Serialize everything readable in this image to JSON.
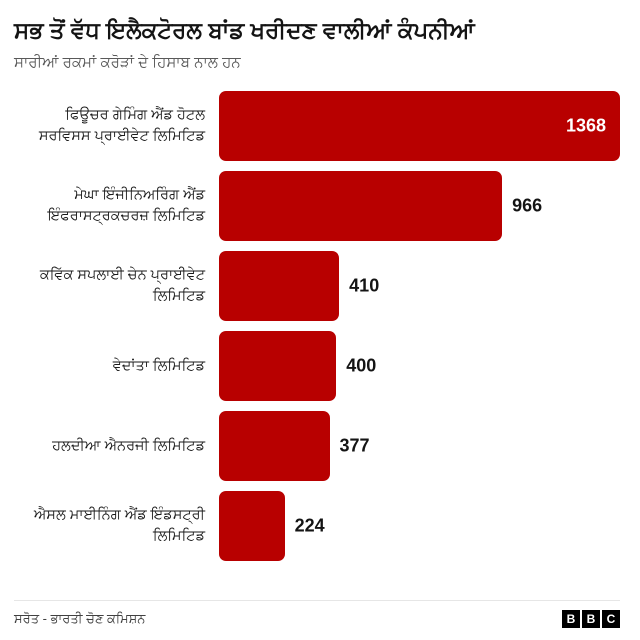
{
  "header": {
    "title": "ਸਭ ਤੋਂ ਵੱਧ ਇਲੈਕਟੋਰਲ ਬਾਂਡ ਖਰੀਦਣ ਵਾਲੀਆਂ ਕੰਪਨੀਆਂ",
    "subtitle": "ਸਾਰੀਆਂ ਰਕਮਾਂ ਕਰੋੜਾਂ ਦੇ ਹਿਸਾਬ ਨਾਲ ਹਨ"
  },
  "chart_data": {
    "type": "bar",
    "orientation": "horizontal",
    "title": "ਸਭ ਤੋਂ ਵੱਧ ਇਲੈਕਟੋਰਲ ਬਾਂਡ ਖਰੀਦਣ ਵਾਲੀਆਂ ਕੰਪਨੀਆਂ",
    "subtitle": "ਸਾਰੀਆਂ ਰਕਮਾਂ ਕਰੋੜਾਂ ਦੇ ਹਿਸਾਬ ਨਾਲ ਹਨ",
    "categories": [
      "ਫਿਊਚਰ ਗੇਮਿੰਗ ਐਂਡ ਹੋਟਲ ਸਰਵਿਸਸ ਪ੍ਰਾਈਵੇਟ ਲਿਮਿਟਿਡ",
      "ਮੇਘਾ ਇੰਜੀਨਿਅਰਿੰਗ ਐਂਡ ਇੰਫਰਾਸਟ੍ਰਕਚਰਜ਼ ਲਿਮਿਟਿਡ",
      "ਕਵਿੱਕ ਸਪਲਾਈ ਚੇਨ ਪ੍ਰਾਈਵੇਟ ਲਿਮਿਟਿਡ",
      "ਵੇਦਾਂਤਾ ਲਿਮਿਟਿਡ",
      "ਹਲਦੀਆ ਐਨਰਜੀ ਲਿਮਿਟਿਡ",
      "ਐਸਲ ਮਾਈਨਿੰਗ ਐਂਡ ਇੰਡਸਟ੍ਰੀ ਲਿਮਿਟਿਡ"
    ],
    "values": [
      1368,
      966,
      410,
      400,
      377,
      224
    ],
    "xlim": [
      0,
      1368
    ],
    "bar_color": "#b80000",
    "value_labels": true,
    "first_value_label_inside": true,
    "grid": false,
    "legend": false
  },
  "footer": {
    "source": "ਸਰੋਤ - ਭਾਰਤੀ ਚੋਣ ਕਮਿਸ਼ਨ",
    "logo_letters": [
      "B",
      "B",
      "C"
    ]
  }
}
